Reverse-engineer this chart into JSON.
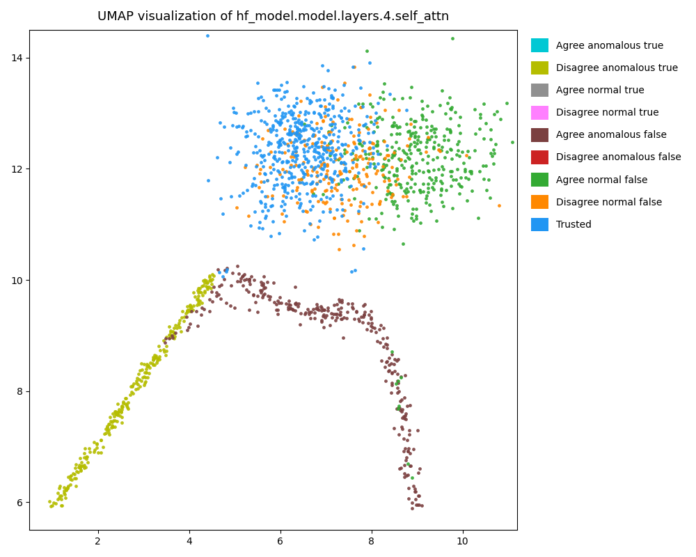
{
  "title": "UMAP visualization of hf_model.model.layers.4.self_attn",
  "xlim": [
    0.5,
    11.2
  ],
  "ylim": [
    5.5,
    14.5
  ],
  "xticks": [
    2,
    4,
    6,
    8,
    10
  ],
  "yticks": [
    6,
    8,
    10,
    12,
    14
  ],
  "categories": [
    "Agree anomalous true",
    "Disagree anomalous true",
    "Agree normal true",
    "Disagree normal true",
    "Agree anomalous false",
    "Disagree anomalous false",
    "Agree normal false",
    "Disagree normal false",
    "Trusted"
  ],
  "colors": [
    "#00c8d4",
    "#b5bd00",
    "#909090",
    "#ff80ff",
    "#7b4040",
    "#cc2222",
    "#33aa33",
    "#ff8800",
    "#2196f3"
  ],
  "marker_size": 12,
  "alpha": 0.9,
  "figsize": [
    10,
    8
  ],
  "dpi": 100,
  "background_color": "#ffffff"
}
